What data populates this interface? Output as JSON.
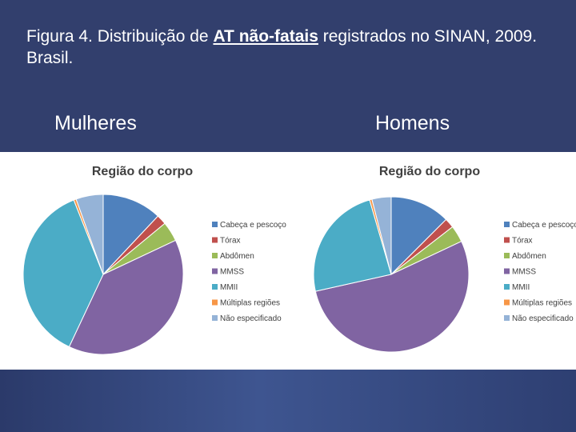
{
  "slide": {
    "title_part1": "Figura 4. Distribuição de ",
    "title_underlined": "AT não-fatais",
    "title_part2": " registrados no SINAN, 2009. Brasil.",
    "label_left": "Mulheres",
    "label_right": "Homens"
  },
  "colors": {
    "background": "#323f6d",
    "slices": [
      "#4f81bd",
      "#c0504d",
      "#9bbb59",
      "#8064a2",
      "#4bacc6",
      "#f79646",
      "#95b3d7"
    ]
  },
  "chart_data": [
    {
      "type": "pie",
      "title": "Região do corpo",
      "categories": [
        "Cabeça e pescoço",
        "Tórax",
        "Abdômen",
        "MMSS",
        "MMII",
        "Múltiplas regiões",
        "Não especificado"
      ],
      "values": [
        12,
        2,
        4,
        39,
        37,
        0.5,
        5.5
      ],
      "legend_position": "right"
    },
    {
      "type": "pie",
      "title": "Região do corpo",
      "categories": [
        "Cabeça e pescoço",
        "Tórax",
        "Abdômen",
        "MMSS",
        "MMII",
        "Múltiplas regiões",
        "Não especificado"
      ],
      "values": [
        12.5,
        2,
        3.5,
        53.5,
        24,
        0.5,
        4
      ],
      "legend_position": "right"
    }
  ]
}
